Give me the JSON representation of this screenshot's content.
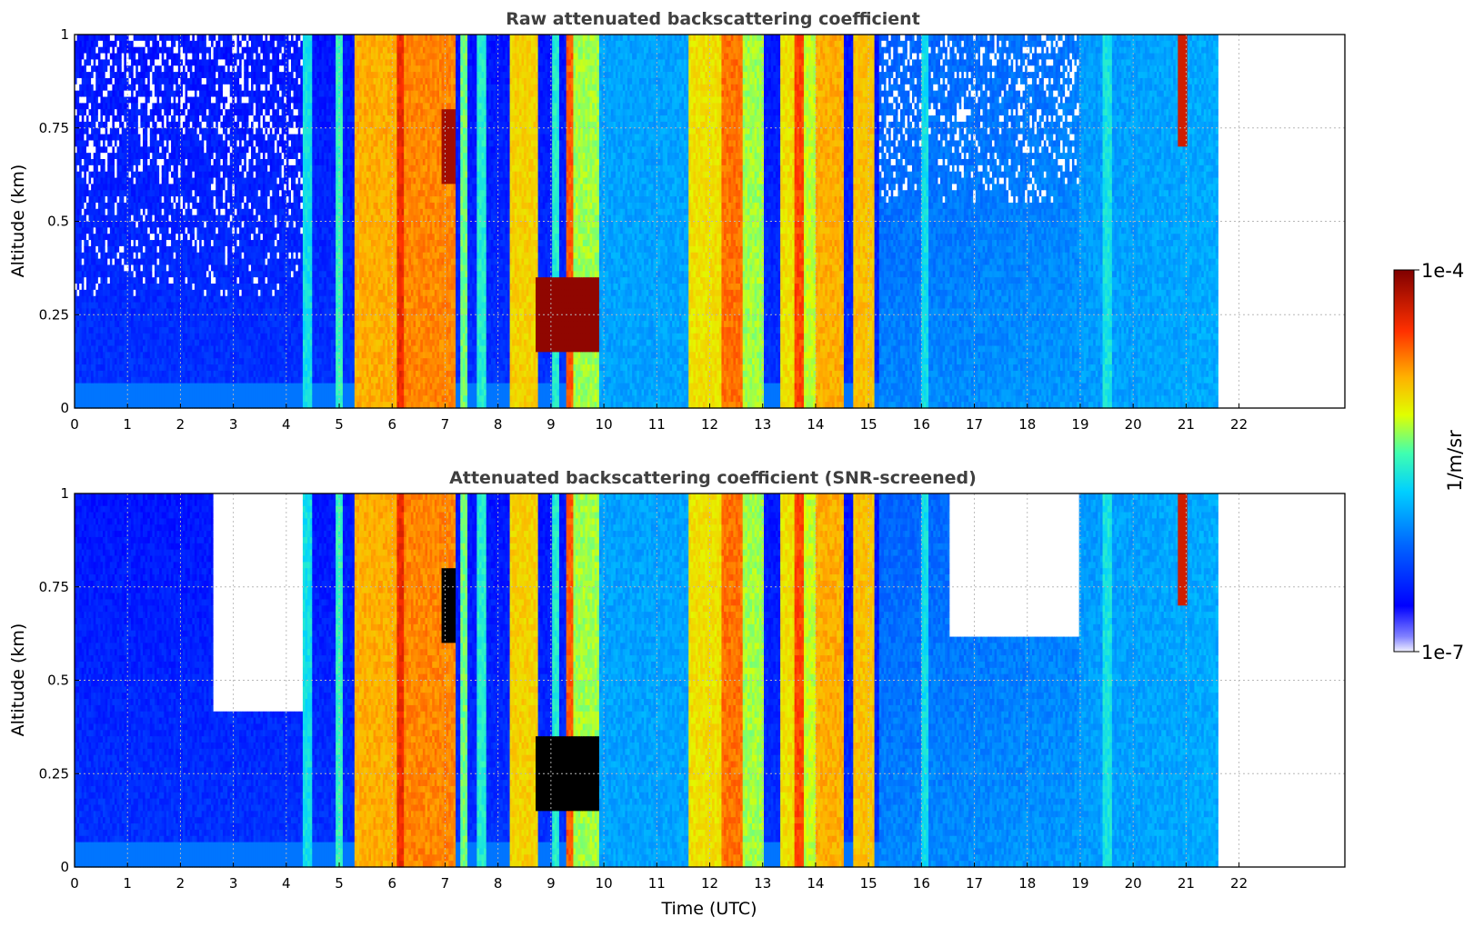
{
  "figure": {
    "xlabel": "Time (UTC)",
    "colorbar": {
      "label": "1/m/sr",
      "max_label": "1e-4",
      "min_label": "1e-7",
      "scale": "log",
      "range": [
        1e-07,
        0.0001
      ]
    }
  },
  "chart_data": [
    {
      "type": "heatmap",
      "title": "Raw attenuated backscattering coefficient",
      "ylabel": "Altitude (km)",
      "xlim": [
        0,
        24
      ],
      "ylim": [
        0,
        1
      ],
      "x_ticks": [
        "0",
        "1",
        "2",
        "3",
        "4",
        "5",
        "6",
        "7",
        "8",
        "9",
        "10",
        "11",
        "12",
        "13",
        "14",
        "15",
        "16",
        "17",
        "18",
        "19",
        "20",
        "21",
        "22"
      ],
      "y_ticks": [
        "0",
        "0.25",
        "0.5",
        "0.75",
        "1"
      ],
      "grid": true,
      "data_end_time": 21.6,
      "screened": false
    },
    {
      "type": "heatmap",
      "title": "Attenuated backscattering coefficient (SNR-screened)",
      "ylabel": "Altitude (km)",
      "xlabel": "Time (UTC)",
      "xlim": [
        0,
        24
      ],
      "ylim": [
        0,
        1
      ],
      "x_ticks": [
        "0",
        "1",
        "2",
        "3",
        "4",
        "5",
        "6",
        "7",
        "8",
        "9",
        "10",
        "11",
        "12",
        "13",
        "14",
        "15",
        "16",
        "17",
        "18",
        "19",
        "20",
        "21",
        "22"
      ],
      "y_ticks": [
        "0",
        "0.25",
        "0.5",
        "0.75",
        "1"
      ],
      "grid": true,
      "data_end_time": 21.6,
      "screened": true
    }
  ]
}
